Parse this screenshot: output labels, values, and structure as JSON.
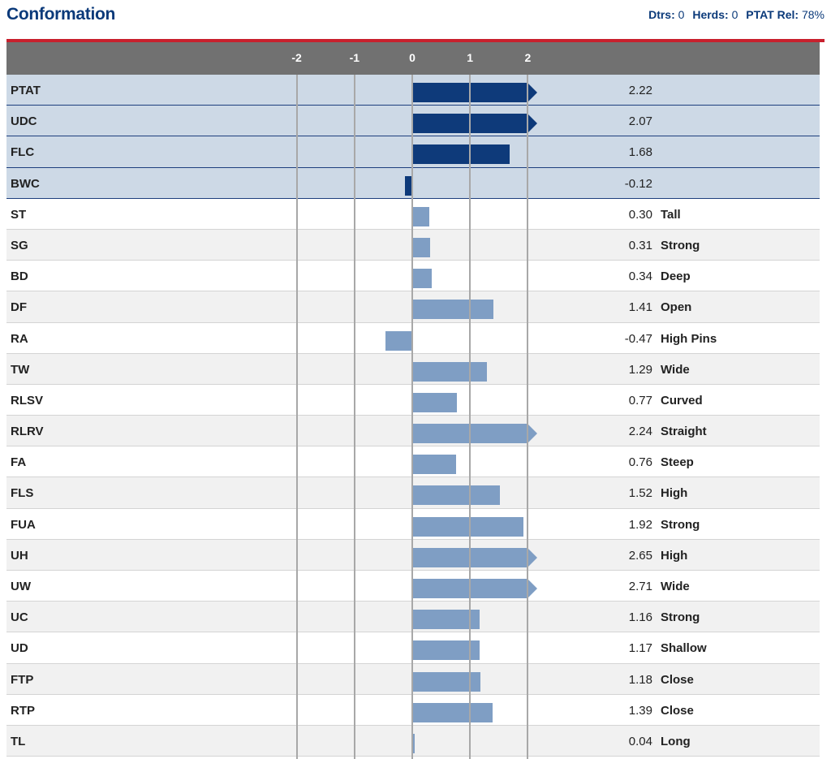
{
  "header": {
    "title": "Conformation",
    "dtrs_label": "Dtrs:",
    "dtrs_value": "0",
    "herds_label": "Herds:",
    "herds_value": "0",
    "rel_label": "PTAT Rel:",
    "rel_value": "78%"
  },
  "colors": {
    "group_bar": "#0e3a7a",
    "trait_bar": "#7f9ec4",
    "accent_red": "#c8202d",
    "title_blue": "#0b3a7a"
  },
  "chart_data": {
    "type": "bar",
    "orientation": "horizontal",
    "xlim": [
      -2,
      2
    ],
    "ticks": [
      "-2",
      "-1",
      "0",
      "1",
      "2"
    ],
    "grid": true,
    "categories": [
      "PTAT",
      "UDC",
      "FLC",
      "BWC",
      "ST",
      "SG",
      "BD",
      "DF",
      "RA",
      "TW",
      "RLSV",
      "RLRV",
      "FA",
      "FLS",
      "FUA",
      "UH",
      "UW",
      "UC",
      "UD",
      "FTP",
      "RTP",
      "TL"
    ],
    "values": [
      2.22,
      2.07,
      1.68,
      -0.12,
      0.3,
      0.31,
      0.34,
      1.41,
      -0.47,
      1.29,
      0.77,
      2.24,
      0.76,
      1.52,
      1.92,
      2.65,
      2.71,
      1.16,
      1.17,
      1.18,
      1.39,
      0.04
    ],
    "value_labels": [
      "2.22",
      "2.07",
      "1.68",
      "-0.12",
      "0.30",
      "0.31",
      "0.34",
      "1.41",
      "-0.47",
      "1.29",
      "0.77",
      "2.24",
      "0.76",
      "1.52",
      "1.92",
      "2.65",
      "2.71",
      "1.16",
      "1.17",
      "1.18",
      "1.39",
      "0.04"
    ],
    "descriptors": [
      "",
      "",
      "",
      "",
      "Tall",
      "Strong",
      "Deep",
      "Open",
      "High Pins",
      "Wide",
      "Curved",
      "Straight",
      "Steep",
      "High",
      "Strong",
      "High",
      "Wide",
      "Strong",
      "Shallow",
      "Close",
      "Close",
      "Long"
    ],
    "group_rows": [
      "PTAT",
      "UDC",
      "FLC",
      "BWC"
    ]
  }
}
